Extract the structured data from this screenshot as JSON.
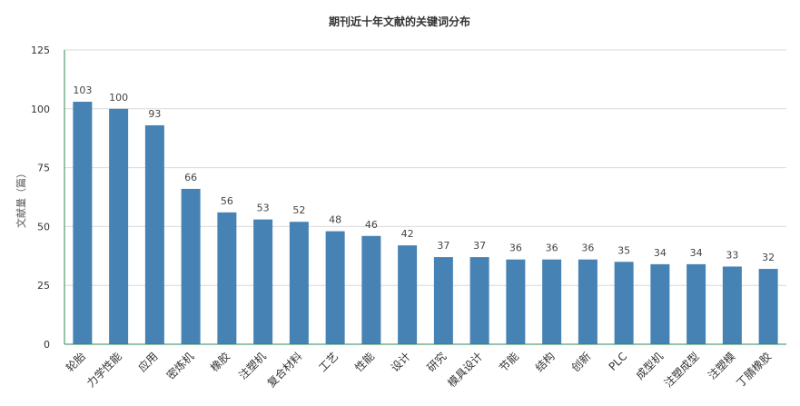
{
  "chart_data": {
    "type": "bar",
    "title": "期刊近十年文献的关键词分布",
    "ylabel": "文献量（篇）",
    "xlabel": "",
    "ylim": [
      0,
      125
    ],
    "yticks": [
      0,
      25,
      50,
      75,
      100,
      125
    ],
    "grid": true,
    "categories": [
      "轮胎",
      "力学性能",
      "应用",
      "密炼机",
      "橡胶",
      "注塑机",
      "复合材料",
      "工艺",
      "性能",
      "设计",
      "研究",
      "模具设计",
      "节能",
      "结构",
      "创新",
      "PLC",
      "成型机",
      "注塑成型",
      "注塑模",
      "丁腈橡胶"
    ],
    "values": [
      103,
      100,
      93,
      66,
      56,
      53,
      52,
      48,
      46,
      42,
      37,
      37,
      36,
      36,
      36,
      35,
      34,
      34,
      33,
      32
    ],
    "colors": {
      "bar": "#4682b4",
      "axis": "#2e8b57"
    }
  }
}
